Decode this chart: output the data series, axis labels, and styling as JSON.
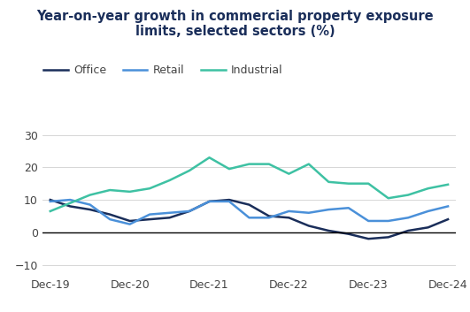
{
  "title_line1": "Year-on-year growth in commercial property exposure",
  "title_line2": "limits, selected sectors (%)",
  "x_labels": [
    "Dec-19",
    "Dec-20",
    "Dec-21",
    "Dec-22",
    "Dec-23",
    "Dec-24"
  ],
  "office_label": "Office",
  "office_color": "#1a2e5a",
  "office_x": [
    0.0,
    0.25,
    0.5,
    0.75,
    1.0,
    1.25,
    1.5,
    1.75,
    2.0,
    2.25,
    2.5,
    2.75,
    3.0,
    3.25,
    3.5,
    3.75,
    4.0,
    4.25,
    4.5,
    4.75,
    5.0
  ],
  "office_y": [
    10.0,
    8.0,
    7.0,
    5.5,
    3.5,
    4.0,
    4.5,
    6.5,
    9.5,
    10.0,
    8.5,
    5.0,
    4.5,
    2.0,
    0.5,
    -0.5,
    -2.0,
    -1.5,
    0.5,
    1.5,
    4.0
  ],
  "retail_label": "Retail",
  "retail_color": "#4a90d9",
  "retail_x": [
    0.0,
    0.25,
    0.5,
    0.75,
    1.0,
    1.25,
    1.5,
    1.75,
    2.0,
    2.25,
    2.5,
    2.75,
    3.0,
    3.25,
    3.5,
    3.75,
    4.0,
    4.25,
    4.5,
    4.75,
    5.0
  ],
  "retail_y": [
    9.5,
    10.0,
    8.5,
    4.0,
    2.5,
    5.5,
    6.0,
    6.5,
    9.5,
    9.5,
    4.5,
    4.5,
    6.5,
    6.0,
    7.0,
    7.5,
    3.5,
    3.5,
    4.5,
    6.5,
    8.0
  ],
  "industrial_label": "Industrial",
  "industrial_color": "#3ec1a3",
  "industrial_x": [
    0.0,
    0.25,
    0.5,
    0.75,
    1.0,
    1.25,
    1.5,
    1.75,
    2.0,
    2.25,
    2.5,
    2.75,
    3.0,
    3.25,
    3.5,
    3.75,
    4.0,
    4.25,
    4.5,
    4.75,
    5.0
  ],
  "industrial_y": [
    6.5,
    9.0,
    11.5,
    13.0,
    12.5,
    13.5,
    16.0,
    19.0,
    23.0,
    19.5,
    21.0,
    21.0,
    18.0,
    21.0,
    15.5,
    15.0,
    15.0,
    10.5,
    11.5,
    13.5,
    14.7
  ],
  "ylim": [
    -13,
    35
  ],
  "yticks": [
    -10,
    0,
    10,
    20,
    30
  ],
  "background_color": "#ffffff",
  "title_color": "#1a2e5a",
  "title_fontsize": 10.5,
  "legend_fontsize": 9,
  "tick_fontsize": 9,
  "linewidth": 1.8
}
